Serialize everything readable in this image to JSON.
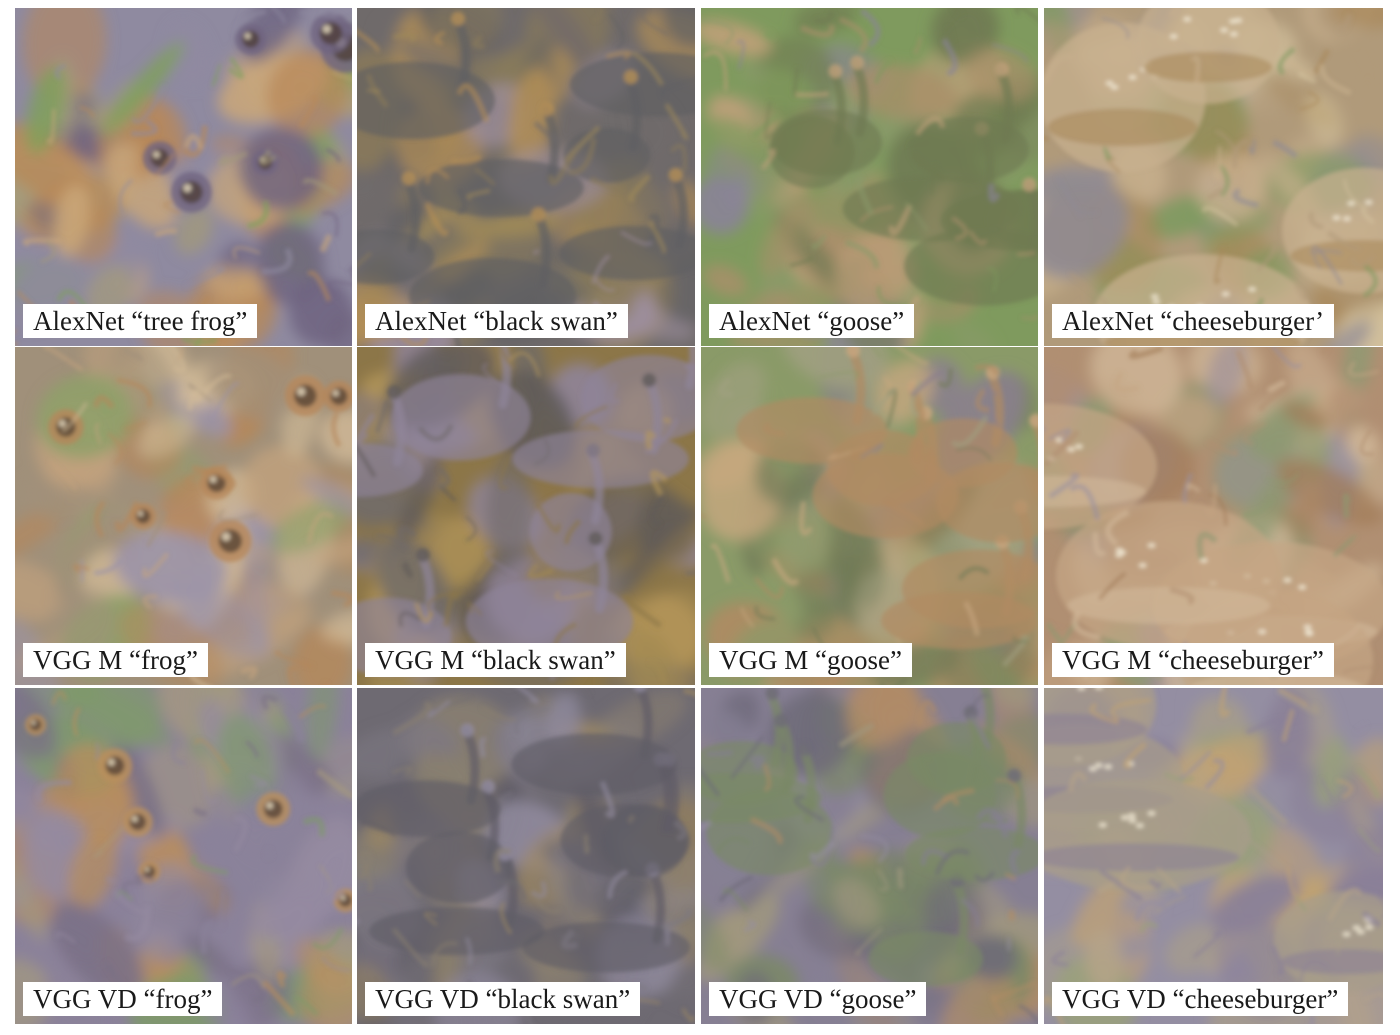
{
  "figure": {
    "rows": [
      {
        "network": "AlexNet",
        "tiles": [
          {
            "caption": "AlexNet “tree frog”",
            "subject": "frog",
            "palette": [
              "#8f8aa0",
              "#a39a7c",
              "#7ea05a",
              "#b88858",
              "#6f6480",
              "#c9a77a"
            ]
          },
          {
            "caption": "AlexNet “black swan”",
            "subject": "swan",
            "palette": [
              "#6f6a6a",
              "#8a7b5a",
              "#a08a58",
              "#5f5f63",
              "#9e8fa0",
              "#b59056"
            ]
          },
          {
            "caption": "AlexNet “goose”",
            "subject": "goose",
            "palette": [
              "#7f9a5e",
              "#8a9a6a",
              "#a98f6a",
              "#6f7a52",
              "#8a8498",
              "#c0a07a"
            ]
          },
          {
            "caption": "AlexNet “cheeseburger’",
            "subject": "burger",
            "palette": [
              "#b09a7a",
              "#c8b08e",
              "#8f8a95",
              "#a88758",
              "#7e9a60",
              "#d6c4a0"
            ]
          }
        ]
      },
      {
        "network": "VGG M",
        "tiles": [
          {
            "caption": "VGG M “frog”",
            "subject": "frog",
            "palette": [
              "#a0907a",
              "#c4a37e",
              "#8ea06a",
              "#9b93a8",
              "#b5875a",
              "#d2bb98"
            ]
          },
          {
            "caption": "VGG M “black swan”",
            "subject": "swan",
            "palette": [
              "#8c7648",
              "#a48a52",
              "#6f6a6a",
              "#8f8499",
              "#b5975a",
              "#5f5a58"
            ]
          },
          {
            "caption": "VGG M “goose”",
            "subject": "goose",
            "palette": [
              "#8a9a68",
              "#a0a080",
              "#8a7f8e",
              "#b08a62",
              "#707a56",
              "#c8a880"
            ]
          },
          {
            "caption": "VGG M “cheeseburger”",
            "subject": "burger",
            "palette": [
              "#b08f72",
              "#c5a584",
              "#9a8fa0",
              "#d3bb9c",
              "#a07a56",
              "#8e9a72"
            ]
          }
        ]
      },
      {
        "network": "VGG VD",
        "tiles": [
          {
            "caption": "VGG VD “frog”",
            "subject": "frog",
            "palette": [
              "#8b829a",
              "#958aa0",
              "#a59a7e",
              "#7e9a6a",
              "#b98e5c",
              "#7a7086"
            ]
          },
          {
            "caption": "VGG VD “black swan”",
            "subject": "swan",
            "palette": [
              "#6e6a72",
              "#7d7882",
              "#8a8070",
              "#5f5c66",
              "#a08a60",
              "#928ca0"
            ]
          },
          {
            "caption": "VGG VD “goose”",
            "subject": "goose",
            "palette": [
              "#867f93",
              "#948ea0",
              "#a0977e",
              "#7a8866",
              "#b08c66",
              "#6e6a78"
            ]
          },
          {
            "caption": "VGG VD “cheeseburger”",
            "subject": "burger",
            "palette": [
              "#948ea2",
              "#a89d8a",
              "#b5a488",
              "#8a8098",
              "#c0a274",
              "#9aa07c"
            ]
          }
        ]
      }
    ]
  }
}
